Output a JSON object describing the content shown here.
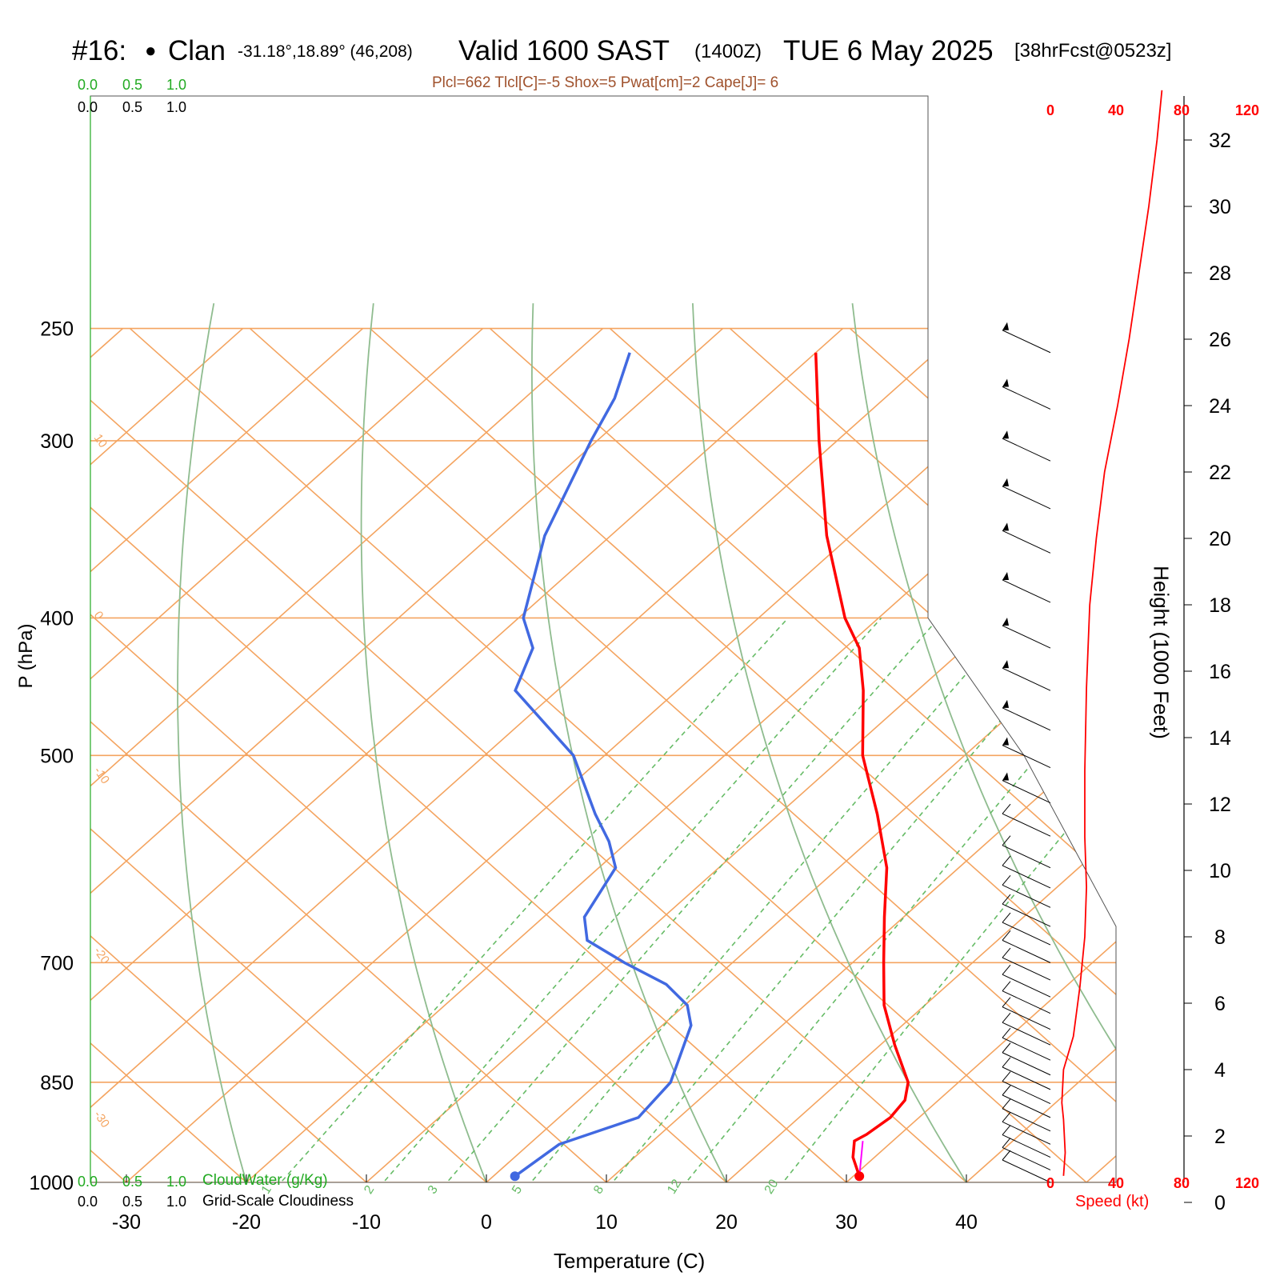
{
  "header": {
    "station": "#16:",
    "dot": "●",
    "name": "Clan",
    "coords": "-31.18°,18.89° (46,208)",
    "valid": "Valid 1600 SAST",
    "zulu": "(1400Z)",
    "date": "TUE 6 May 2025",
    "forecast": "[38hrFcst@0523z]"
  },
  "params_line": "Plcl=662 Tlcl[C]=-5 Shox=5 Pwat[cm]=2 Cape[J]= 6",
  "cloud_scale": {
    "top_green": [
      "0.0",
      "0.5",
      "1.0"
    ],
    "top_black": [
      "0.0",
      "0.5",
      "1.0"
    ],
    "bottom_green": [
      "0.0",
      "0.5",
      "1.0"
    ],
    "bottom_black": [
      "0.0",
      "0.5",
      "1.0"
    ],
    "cloudwater_label": "CloudWater (g/Kg)",
    "cloudiness_label": "Grid-Scale Cloudiness"
  },
  "colors": {
    "temperature": "#ff0000",
    "dewpoint": "#4169e1",
    "isotherm_isobar": "#f4a460",
    "adiabat": "#8fbc8f",
    "mixing_ratio": "#66bb66",
    "parcel": "#ff00ff",
    "speed": "#ff0000"
  },
  "chart_data": {
    "type": "skew-t",
    "xlabel": "Temperature (C)",
    "ylabel": "P (hPa)",
    "right_label": "Height (1000 Feet)",
    "speed_label": "Speed (kt)",
    "xlim": [
      -33,
      47
    ],
    "plim": [
      1030,
      250
    ],
    "x_ticks": [
      "-30",
      "-20",
      "-10",
      "0",
      "10",
      "20",
      "30",
      "40"
    ],
    "p_ticks": [
      "250",
      "300",
      "400",
      "500",
      "700",
      "850",
      "1000"
    ],
    "height_ticks": [
      "0",
      "2",
      "4",
      "6",
      "8",
      "10",
      "12",
      "14",
      "16",
      "18",
      "20",
      "22",
      "24",
      "26",
      "28",
      "30",
      "32"
    ],
    "speed_ticks": [
      "0",
      "40",
      "80",
      "120"
    ],
    "skewed_isotherm_labels": [
      "-30",
      "-20",
      "-10",
      "0",
      "10",
      "20",
      "30"
    ],
    "left_isotherm_labels": [
      "10",
      "0",
      "-10",
      "-20",
      "-30"
    ],
    "mixing_ratio_labels": [
      "1",
      "2",
      "3",
      "5",
      "8",
      "12",
      "20"
    ],
    "temperature": [
      {
        "p": 990,
        "t": 30.5
      },
      {
        "p": 960,
        "t": 28.2
      },
      {
        "p": 935,
        "t": 26.8
      },
      {
        "p": 925,
        "t": 27.2
      },
      {
        "p": 900,
        "t": 27.6
      },
      {
        "p": 875,
        "t": 27.2
      },
      {
        "p": 850,
        "t": 25.8
      },
      {
        "p": 800,
        "t": 21.2
      },
      {
        "p": 750,
        "t": 16.6
      },
      {
        "p": 700,
        "t": 12.6
      },
      {
        "p": 650,
        "t": 8.4
      },
      {
        "p": 600,
        "t": 4.0
      },
      {
        "p": 550,
        "t": -1.8
      },
      {
        "p": 500,
        "t": -8.5
      },
      {
        "p": 450,
        "t": -14.5
      },
      {
        "p": 420,
        "t": -18.8
      },
      {
        "p": 400,
        "t": -22.8
      },
      {
        "p": 350,
        "t": -32.0
      },
      {
        "p": 300,
        "t": -41.5
      },
      {
        "p": 260,
        "t": -50.0
      }
    ],
    "dewpoint": [
      {
        "p": 990,
        "t": 1.8
      },
      {
        "p": 940,
        "t": 2.5
      },
      {
        "p": 900,
        "t": 6.6
      },
      {
        "p": 850,
        "t": 6.0
      },
      {
        "p": 775,
        "t": 2.4
      },
      {
        "p": 750,
        "t": 0.2
      },
      {
        "p": 725,
        "t": -3.5
      },
      {
        "p": 700,
        "t": -9.0
      },
      {
        "p": 675,
        "t": -14.2
      },
      {
        "p": 650,
        "t": -16.6
      },
      {
        "p": 600,
        "t": -18.6
      },
      {
        "p": 575,
        "t": -21.6
      },
      {
        "p": 550,
        "t": -25.3
      },
      {
        "p": 500,
        "t": -32.6
      },
      {
        "p": 450,
        "t": -43.5
      },
      {
        "p": 420,
        "t": -46.0
      },
      {
        "p": 400,
        "t": -49.6
      },
      {
        "p": 350,
        "t": -55.5
      },
      {
        "p": 300,
        "t": -60.5
      },
      {
        "p": 280,
        "t": -62.5
      },
      {
        "p": 260,
        "t": -65.5
      }
    ],
    "parcel": [
      {
        "p": 990,
        "t": 30.5
      },
      {
        "p": 935,
        "t": 27.5
      }
    ],
    "wind_speed_profile": [
      {
        "h": 0.8,
        "kt": 8
      },
      {
        "h": 1.5,
        "kt": 9
      },
      {
        "h": 2.5,
        "kt": 8
      },
      {
        "h": 3.0,
        "kt": 7
      },
      {
        "h": 4.0,
        "kt": 8
      },
      {
        "h": 5.0,
        "kt": 14
      },
      {
        "h": 6.5,
        "kt": 18
      },
      {
        "h": 8.0,
        "kt": 21
      },
      {
        "h": 9.5,
        "kt": 22
      },
      {
        "h": 11.0,
        "kt": 21
      },
      {
        "h": 13.0,
        "kt": 21
      },
      {
        "h": 15.5,
        "kt": 22
      },
      {
        "h": 18.0,
        "kt": 24
      },
      {
        "h": 20.0,
        "kt": 28
      },
      {
        "h": 22.0,
        "kt": 33
      },
      {
        "h": 24.0,
        "kt": 41
      },
      {
        "h": 26.0,
        "kt": 48
      },
      {
        "h": 28.0,
        "kt": 54
      },
      {
        "h": 30.0,
        "kt": 60
      },
      {
        "h": 32.0,
        "kt": 65
      },
      {
        "h": 33.5,
        "kt": 68
      }
    ]
  }
}
